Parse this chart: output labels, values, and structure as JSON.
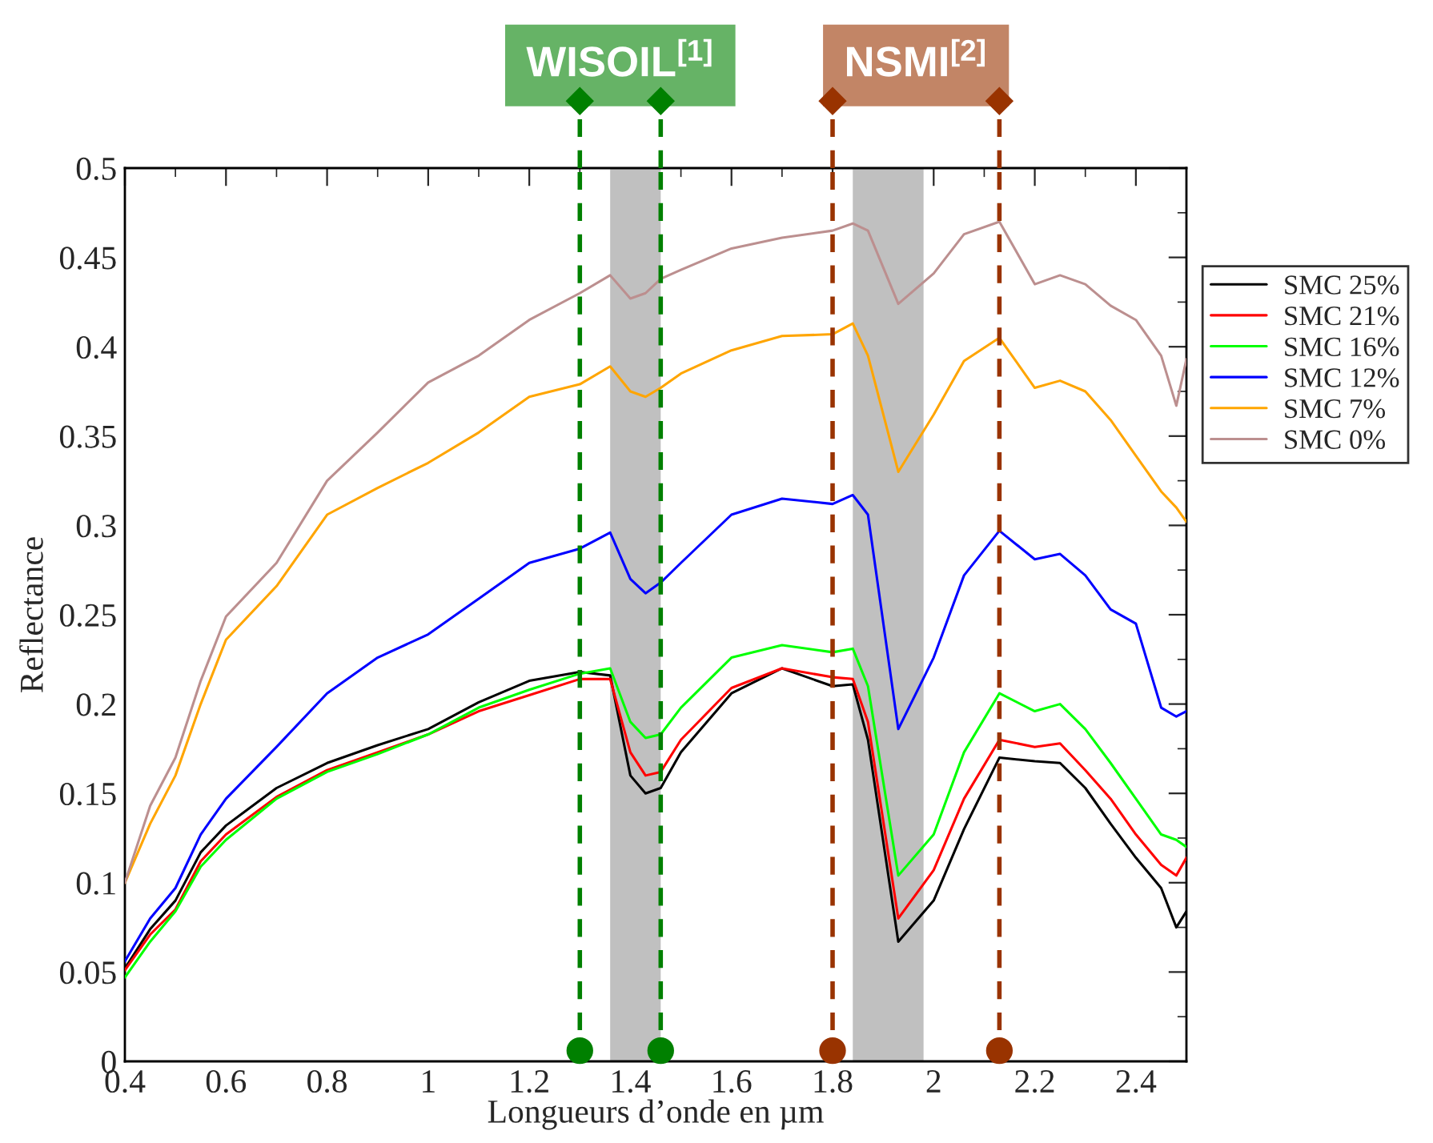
{
  "chart_data": {
    "type": "line",
    "xlabel": "Longueurs d’onde en µm",
    "ylabel": "Reflectance",
    "x": [
      0.4,
      0.45,
      0.5,
      0.55,
      0.6,
      0.7,
      0.8,
      0.9,
      1.0,
      1.1,
      1.2,
      1.3,
      1.36,
      1.4,
      1.43,
      1.46,
      1.5,
      1.6,
      1.7,
      1.8,
      1.84,
      1.87,
      1.93,
      2.0,
      2.06,
      2.13,
      2.2,
      2.25,
      2.3,
      2.35,
      2.4,
      2.45,
      2.48,
      2.5
    ],
    "series": [
      {
        "name": "SMC 25%",
        "color": "#000000",
        "values": [
          0.052,
          0.074,
          0.09,
          0.117,
          0.132,
          0.153,
          0.167,
          0.177,
          0.186,
          0.201,
          0.213,
          0.218,
          0.216,
          0.16,
          0.15,
          0.153,
          0.173,
          0.206,
          0.22,
          0.21,
          0.211,
          0.18,
          0.067,
          0.09,
          0.13,
          0.17,
          0.168,
          0.167,
          0.153,
          0.133,
          0.114,
          0.097,
          0.075,
          0.084
        ]
      },
      {
        "name": "SMC 21%",
        "color": "#ff0000",
        "values": [
          0.051,
          0.071,
          0.085,
          0.112,
          0.127,
          0.148,
          0.163,
          0.173,
          0.183,
          0.196,
          0.205,
          0.214,
          0.214,
          0.173,
          0.16,
          0.162,
          0.18,
          0.209,
          0.22,
          0.215,
          0.214,
          0.19,
          0.08,
          0.107,
          0.147,
          0.18,
          0.176,
          0.178,
          0.163,
          0.147,
          0.127,
          0.11,
          0.104,
          0.114
        ]
      },
      {
        "name": "SMC 16%",
        "color": "#00ff00",
        "values": [
          0.047,
          0.067,
          0.084,
          0.109,
          0.124,
          0.147,
          0.162,
          0.172,
          0.183,
          0.198,
          0.208,
          0.217,
          0.22,
          0.19,
          0.181,
          0.183,
          0.198,
          0.226,
          0.233,
          0.229,
          0.231,
          0.21,
          0.104,
          0.127,
          0.173,
          0.206,
          0.196,
          0.2,
          0.186,
          0.167,
          0.147,
          0.127,
          0.124,
          0.12
        ]
      },
      {
        "name": "SMC 12%",
        "color": "#0000ff",
        "values": [
          0.056,
          0.08,
          0.097,
          0.127,
          0.147,
          0.176,
          0.206,
          0.226,
          0.239,
          0.259,
          0.279,
          0.287,
          0.296,
          0.27,
          0.262,
          0.268,
          0.279,
          0.306,
          0.315,
          0.312,
          0.317,
          0.306,
          0.186,
          0.226,
          0.272,
          0.297,
          0.281,
          0.284,
          0.272,
          0.253,
          0.245,
          0.198,
          0.193,
          0.196
        ]
      },
      {
        "name": "SMC 7%",
        "color": "#ffa500",
        "values": [
          0.1,
          0.133,
          0.16,
          0.2,
          0.236,
          0.266,
          0.306,
          0.321,
          0.335,
          0.352,
          0.372,
          0.379,
          0.389,
          0.375,
          0.372,
          0.377,
          0.385,
          0.398,
          0.406,
          0.407,
          0.413,
          0.395,
          0.33,
          0.362,
          0.392,
          0.405,
          0.377,
          0.381,
          0.375,
          0.359,
          0.339,
          0.319,
          0.31,
          0.302
        ]
      },
      {
        "name": "SMC 0%",
        "color": "#bc8f8f",
        "values": [
          0.1,
          0.143,
          0.17,
          0.213,
          0.249,
          0.279,
          0.325,
          0.352,
          0.38,
          0.395,
          0.415,
          0.43,
          0.44,
          0.427,
          0.43,
          0.438,
          0.443,
          0.455,
          0.461,
          0.465,
          0.469,
          0.465,
          0.424,
          0.441,
          0.463,
          0.47,
          0.435,
          0.44,
          0.435,
          0.423,
          0.415,
          0.395,
          0.367,
          0.393
        ]
      }
    ],
    "xlim": [
      0.4,
      2.5
    ],
    "xticks": [
      0.4,
      0.6,
      0.8,
      1,
      1.2,
      1.4,
      1.6,
      1.8,
      2,
      2.2,
      2.4
    ],
    "ylim": [
      0,
      0.5
    ],
    "yticks": [
      0,
      0.05,
      0.1,
      0.15,
      0.2,
      0.25,
      0.3,
      0.35,
      0.4,
      0.45,
      0.5
    ],
    "bands": [
      {
        "axis": "x",
        "from": 1.36,
        "to": 1.46,
        "color": "#c0c0c0"
      },
      {
        "axis": "x",
        "from": 1.84,
        "to": 1.98,
        "color": "#c0c0c0"
      }
    ],
    "ref_lines": [
      {
        "axis": "x",
        "value": 1.3,
        "color": "#008000",
        "line_style": "dashed"
      },
      {
        "axis": "x",
        "value": 1.46,
        "color": "#008000",
        "line_style": "dashed"
      },
      {
        "axis": "x",
        "value": 1.8,
        "color": "#993300",
        "line_style": "dashed"
      },
      {
        "axis": "x",
        "value": 2.13,
        "color": "#993300",
        "line_style": "dashed"
      }
    ],
    "annotations": [
      "WISOIL$^{[1]}$",
      "NSMI$^{[2]}$"
    ],
    "legend": "right",
    "grid": false,
    "line_style": "solid",
    "marker": "none"
  }
}
